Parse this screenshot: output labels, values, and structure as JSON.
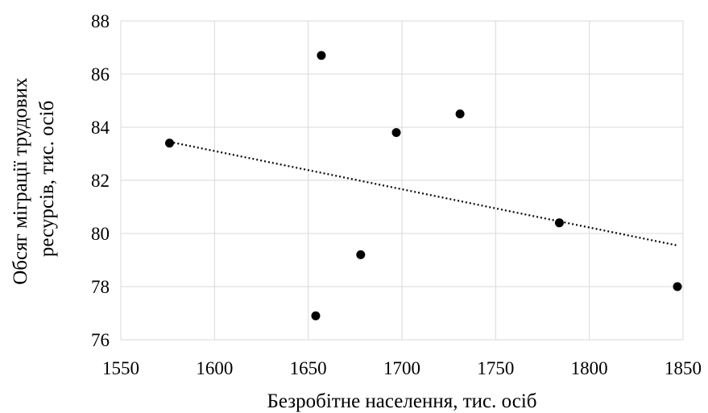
{
  "chart_data": {
    "type": "scatter",
    "title": "",
    "xlabel": "Безробітне населення, тис. осіб",
    "ylabel_lines": [
      "Обсяг міграції трудових",
      "ресурсів, тис. осіб"
    ],
    "xlim": [
      1550,
      1850
    ],
    "ylim": [
      76,
      88
    ],
    "xticks": [
      1550,
      1600,
      1650,
      1700,
      1750,
      1800,
      1850
    ],
    "yticks": [
      76,
      78,
      80,
      82,
      84,
      86,
      88
    ],
    "grid": true,
    "legend": "none",
    "points": [
      {
        "x": 1576,
        "y": 83.4
      },
      {
        "x": 1657,
        "y": 86.7
      },
      {
        "x": 1697,
        "y": 83.8
      },
      {
        "x": 1731,
        "y": 84.5
      },
      {
        "x": 1784,
        "y": 80.4
      },
      {
        "x": 1847,
        "y": 78.0
      },
      {
        "x": 1678,
        "y": 79.2
      },
      {
        "x": 1654,
        "y": 76.9
      }
    ],
    "trendline": {
      "style": "dotted",
      "x": [
        1576,
        1847
      ],
      "y": [
        83.45,
        79.55
      ]
    },
    "colors": {
      "points": "#000000",
      "grid": "#d9d9d9",
      "trendline": "#000000"
    }
  }
}
